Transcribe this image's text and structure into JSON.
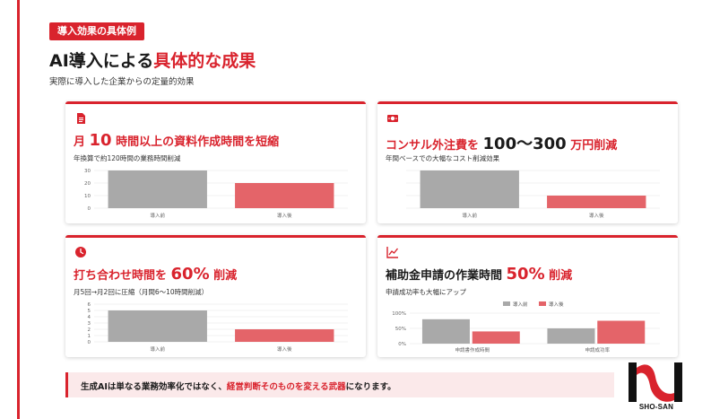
{
  "header": {
    "tag": "導入効果の具体例",
    "title_prefix": "AI導入による",
    "title_accent": "具体的な成果",
    "subtitle": "実際に導入した企業からの定量的効果"
  },
  "cards": [
    {
      "icon": "document-icon",
      "head": [
        "月 ",
        "10",
        " 時間以上の資料作成時間を短縮"
      ],
      "sub": "年換算で約120時間の業務時間削減",
      "chart_data": {
        "type": "bar",
        "categories": [
          "導入前",
          "導入後"
        ],
        "values": [
          30,
          20
        ],
        "ylim": [
          0,
          30
        ],
        "yticks": [
          "30",
          "20",
          "10",
          "0"
        ],
        "colors": [
          "#a9a9a9",
          "#e46469"
        ]
      }
    },
    {
      "icon": "money-icon",
      "head": [
        "コンサル外注費を ",
        "100〜300",
        " 万円削減"
      ],
      "sub": "年間ベースでの大幅なコスト削減効果",
      "chart_data": {
        "type": "bar",
        "categories": [
          "導入前",
          "導入後"
        ],
        "values": [
          300,
          100
        ],
        "ylim": [
          0,
          300
        ],
        "yticks": [],
        "colors": [
          "#a9a9a9",
          "#e46469"
        ]
      }
    },
    {
      "icon": "clock-icon",
      "head": [
        "打ち合わせ時間を ",
        "60%",
        " 削減"
      ],
      "sub": "月5回→月2回に圧縮（月間6〜10時間削減）",
      "chart_data": {
        "type": "bar",
        "categories": [
          "導入前",
          "導入後"
        ],
        "values": [
          5,
          2
        ],
        "ylim": [
          0,
          6
        ],
        "yticks": [
          "6",
          "5",
          "4",
          "3",
          "2",
          "1",
          "0"
        ],
        "colors": [
          "#a9a9a9",
          "#e46469"
        ]
      }
    },
    {
      "icon": "trend-chart-icon",
      "head": [
        "補助金申請の作業時間 ",
        "50%",
        " 削減"
      ],
      "sub": "申請成功率も大幅にアップ",
      "chart_data": {
        "type": "bar",
        "categories": [
          "申請書作成時間",
          "申請成功率"
        ],
        "series": [
          {
            "name": "導入前",
            "values": [
              80,
              50
            ],
            "color": "#a9a9a9"
          },
          {
            "name": "導入後",
            "values": [
              40,
              75
            ],
            "color": "#e46469"
          }
        ],
        "ylim": [
          0,
          100
        ],
        "yticks": [
          "100%",
          "50%",
          "0%"
        ]
      }
    }
  ],
  "footer": {
    "text_prefix": "生成AIは単なる業務効率化ではなく、",
    "text_accent": "経営判断そのものを変える武器",
    "text_suffix": "になります。"
  },
  "logo": {
    "text": "SHO-SAN",
    "color": "#d9232d"
  }
}
